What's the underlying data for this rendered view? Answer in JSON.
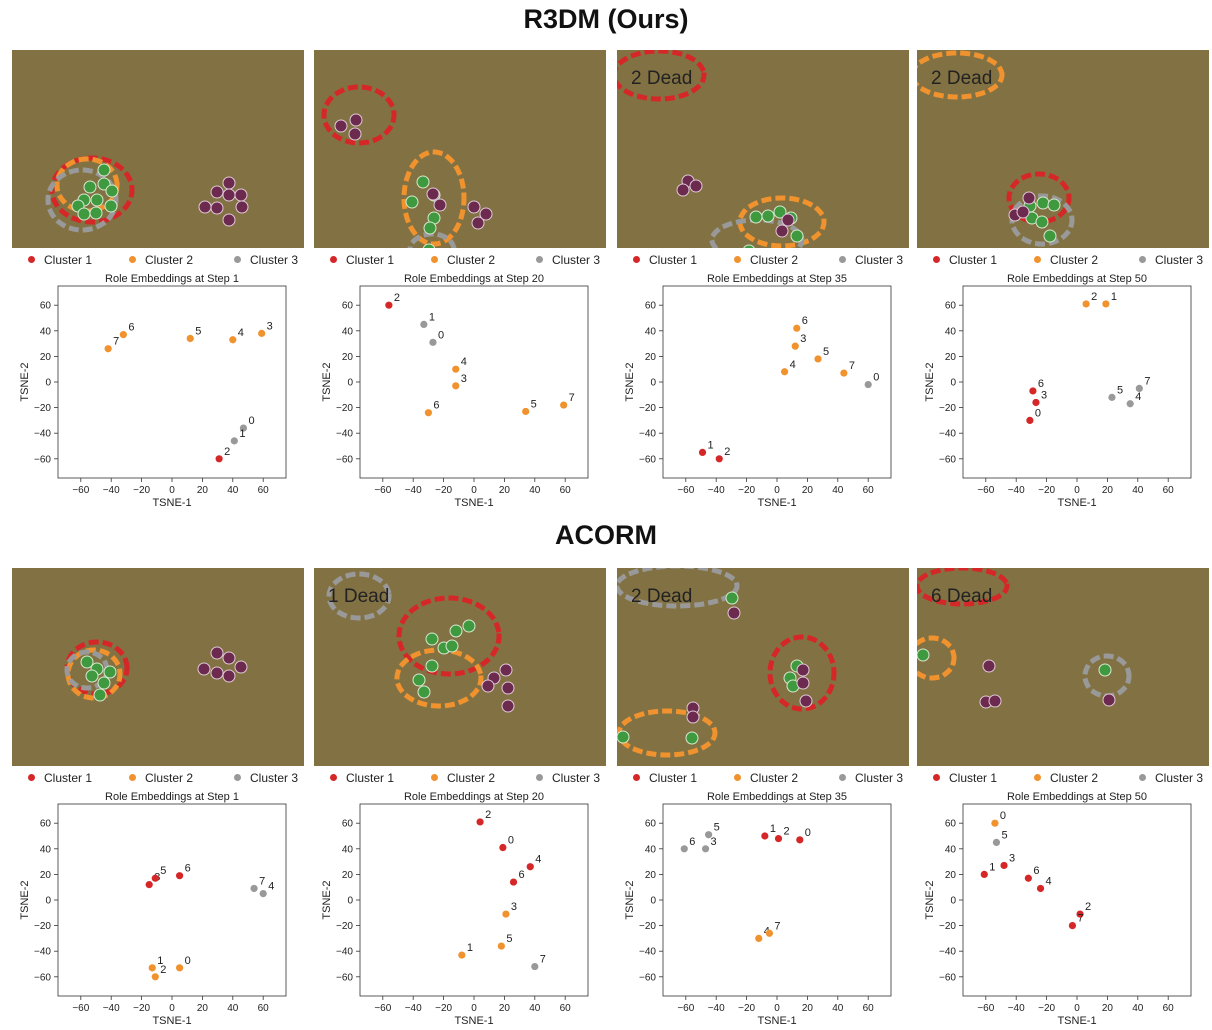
{
  "sections": [
    {
      "title": "R3DM (Ours)",
      "panels": [
        {
          "dead": "",
          "chart_title": "Role Embeddings at Step 1",
          "scene": {
            "agents": [
              [
                78,
                137
              ],
              [
                92,
                134
              ],
              [
                100,
                141
              ],
              [
                72,
                150
              ],
              [
                85,
                150
              ],
              [
                99,
                156
              ],
              [
                66,
                156
              ],
              [
                84,
                163
              ],
              [
                72,
                164
              ],
              [
                92,
                120
              ]
            ],
            "enemies": [
              [
                205,
                158
              ],
              [
                217,
                133
              ],
              [
                229,
                145
              ],
              [
                217,
                145
              ],
              [
                205,
                142
              ],
              [
                230,
                157
              ],
              [
                217,
                170
              ],
              [
                193,
                157
              ]
            ]
          }
        },
        {
          "dead": "",
          "chart_title": "Role Embeddings at Step 20",
          "scene": {
            "agents": [
              [
                109,
                132
              ],
              [
                98,
                152
              ],
              [
                120,
                145
              ],
              [
                120,
                168
              ],
              [
                116,
                178
              ],
              [
                115,
                200
              ]
            ],
            "enemies": [
              [
                42,
                70
              ],
              [
                27,
                76
              ],
              [
                41,
                84
              ],
              [
                160,
                157
              ],
              [
                172,
                164
              ],
              [
                164,
                173
              ],
              [
                126,
                155
              ],
              [
                119,
                144
              ]
            ]
          }
        },
        {
          "dead": "2 Dead",
          "chart_title": "Role Embeddings at Step 35",
          "scene": {
            "agents": [
              [
                139,
                167
              ],
              [
                151,
                166
              ],
              [
                163,
                162
              ],
              [
                174,
                168
              ],
              [
                180,
                186
              ],
              [
                132,
                201
              ]
            ],
            "enemies": [
              [
                71,
                131
              ],
              [
                79,
                136
              ],
              [
                66,
                140
              ],
              [
                171,
                170
              ],
              [
                165,
                181
              ]
            ]
          }
        },
        {
          "dead": "2 Dead",
          "chart_title": "Role Embeddings at Step 50",
          "scene": {
            "agents": [
              [
                113,
                156
              ],
              [
                126,
                153
              ],
              [
                137,
                155
              ],
              [
                115,
                168
              ],
              [
                125,
                172
              ],
              [
                133,
                186
              ]
            ],
            "enemies": [
              [
                98,
                165
              ],
              [
                106,
                162
              ],
              [
                112,
                148
              ]
            ]
          }
        }
      ]
    },
    {
      "title": "ACORM",
      "panels": [
        {
          "dead": "",
          "chart_title": "Role Embeddings at Step 1",
          "scene": {
            "agents": [
              [
                75,
                94
              ],
              [
                85,
                101
              ],
              [
                98,
                104
              ],
              [
                80,
                108
              ],
              [
                92,
                115
              ],
              [
                88,
                127
              ]
            ],
            "enemies": [
              [
                205,
                85
              ],
              [
                217,
                90
              ],
              [
                229,
                99
              ],
              [
                192,
                101
              ],
              [
                205,
                105
              ],
              [
                217,
                108
              ]
            ]
          }
        },
        {
          "dead": "1 Dead",
          "chart_title": "Role Embeddings at Step 20",
          "scene": {
            "agents": [
              [
                118,
                71
              ],
              [
                142,
                63
              ],
              [
                155,
                58
              ],
              [
                130,
                80
              ],
              [
                138,
                78
              ],
              [
                118,
                98
              ],
              [
                105,
                112
              ],
              [
                110,
                124
              ]
            ],
            "enemies": [
              [
                192,
                102
              ],
              [
                180,
                110
              ],
              [
                174,
                118
              ],
              [
                194,
                138
              ],
              [
                194,
                120
              ]
            ]
          }
        },
        {
          "dead": "2 Dead",
          "chart_title": "Role Embeddings at Step 35",
          "scene": {
            "agents": [
              [
                180,
                98
              ],
              [
                173,
                110
              ],
              [
                176,
                118
              ],
              [
                115,
                30
              ],
              [
                6,
                169
              ],
              [
                75,
                170
              ]
            ],
            "enemies": [
              [
                186,
                102
              ],
              [
                186,
                115
              ],
              [
                189,
                133
              ],
              [
                117,
                45
              ],
              [
                76,
                140
              ],
              [
                76,
                149
              ]
            ]
          }
        },
        {
          "dead": "6 Dead",
          "chart_title": "Role Embeddings at Step 50",
          "scene": {
            "agents": [
              [
                188,
                102
              ],
              [
                6,
                87
              ]
            ],
            "enemies": [
              [
                72,
                98
              ],
              [
                69,
                134
              ],
              [
                78,
                133
              ],
              [
                192,
                132
              ]
            ]
          }
        }
      ]
    }
  ],
  "legend": [
    {
      "label": "Cluster 1",
      "color": "#d62728"
    },
    {
      "label": "Cluster 2",
      "color": "#f0922e"
    },
    {
      "label": "Cluster 3",
      "color": "#999999"
    }
  ],
  "chart_data": [
    {
      "type": "scatter",
      "title": "Role Embeddings at Step 1",
      "xlabel": "TSNE-1",
      "ylabel": "TSNE-2",
      "xlim": [
        -75,
        75
      ],
      "ylim": [
        -75,
        75
      ],
      "xticks": [
        -60,
        -40,
        -20,
        0,
        20,
        40,
        60
      ],
      "yticks": [
        -60,
        -40,
        -20,
        0,
        20,
        40,
        60
      ],
      "points": [
        {
          "label": "0",
          "x": 47,
          "y": -36,
          "cluster": 3
        },
        {
          "label": "1",
          "x": 41,
          "y": -46,
          "cluster": 3
        },
        {
          "label": "2",
          "x": 31,
          "y": -60,
          "cluster": 1
        },
        {
          "label": "3",
          "x": 59,
          "y": 38,
          "cluster": 2
        },
        {
          "label": "4",
          "x": 40,
          "y": 33,
          "cluster": 2
        },
        {
          "label": "5",
          "x": 12,
          "y": 34,
          "cluster": 2
        },
        {
          "label": "6",
          "x": -32,
          "y": 37,
          "cluster": 2
        },
        {
          "label": "7",
          "x": -42,
          "y": 26,
          "cluster": 2
        }
      ]
    },
    {
      "type": "scatter",
      "title": "Role Embeddings at Step 20",
      "xlabel": "TSNE-1",
      "ylabel": "TSNE-2",
      "xlim": [
        -75,
        75
      ],
      "ylim": [
        -75,
        75
      ],
      "xticks": [
        -60,
        -40,
        -20,
        0,
        20,
        40,
        60
      ],
      "yticks": [
        -60,
        -40,
        -20,
        0,
        20,
        40,
        60
      ],
      "points": [
        {
          "label": "0",
          "x": -27,
          "y": 31,
          "cluster": 3
        },
        {
          "label": "1",
          "x": -33,
          "y": 45,
          "cluster": 3
        },
        {
          "label": "2",
          "x": -56,
          "y": 60,
          "cluster": 1
        },
        {
          "label": "3",
          "x": -12,
          "y": -3,
          "cluster": 2
        },
        {
          "label": "4",
          "x": -12,
          "y": 10,
          "cluster": 2
        },
        {
          "label": "5",
          "x": 34,
          "y": -23,
          "cluster": 2
        },
        {
          "label": "6",
          "x": -30,
          "y": -24,
          "cluster": 2
        },
        {
          "label": "7",
          "x": 59,
          "y": -18,
          "cluster": 2
        }
      ]
    },
    {
      "type": "scatter",
      "title": "Role Embeddings at Step 35",
      "xlabel": "TSNE-1",
      "ylabel": "TSNE-2",
      "xlim": [
        -75,
        75
      ],
      "ylim": [
        -75,
        75
      ],
      "xticks": [
        -60,
        -40,
        -20,
        0,
        20,
        40,
        60
      ],
      "yticks": [
        -60,
        -40,
        -20,
        0,
        20,
        40,
        60
      ],
      "points": [
        {
          "label": "0",
          "x": 60,
          "y": -2,
          "cluster": 3
        },
        {
          "label": "1",
          "x": -49,
          "y": -55,
          "cluster": 1
        },
        {
          "label": "2",
          "x": -38,
          "y": -60,
          "cluster": 1
        },
        {
          "label": "3",
          "x": 12,
          "y": 28,
          "cluster": 2
        },
        {
          "label": "4",
          "x": 5,
          "y": 8,
          "cluster": 2
        },
        {
          "label": "5",
          "x": 27,
          "y": 18,
          "cluster": 2
        },
        {
          "label": "6",
          "x": 13,
          "y": 42,
          "cluster": 2
        },
        {
          "label": "7",
          "x": 44,
          "y": 7,
          "cluster": 2
        }
      ]
    },
    {
      "type": "scatter",
      "title": "Role Embeddings at Step 50",
      "xlabel": "TSNE-1",
      "ylabel": "TSNE-2",
      "xlim": [
        -75,
        75
      ],
      "ylim": [
        -75,
        75
      ],
      "xticks": [
        -60,
        -40,
        -20,
        0,
        20,
        40,
        60
      ],
      "yticks": [
        -60,
        -40,
        -20,
        0,
        20,
        40,
        60
      ],
      "points": [
        {
          "label": "0",
          "x": -31,
          "y": -30,
          "cluster": 1
        },
        {
          "label": "1",
          "x": 19,
          "y": 61,
          "cluster": 2
        },
        {
          "label": "2",
          "x": 6,
          "y": 61,
          "cluster": 2
        },
        {
          "label": "3",
          "x": -27,
          "y": -16,
          "cluster": 1
        },
        {
          "label": "4",
          "x": 35,
          "y": -17,
          "cluster": 3
        },
        {
          "label": "5",
          "x": 23,
          "y": -12,
          "cluster": 3
        },
        {
          "label": "6",
          "x": -29,
          "y": -7,
          "cluster": 1
        },
        {
          "label": "7",
          "x": 41,
          "y": -5,
          "cluster": 3
        }
      ]
    },
    {
      "type": "scatter",
      "title": "Role Embeddings at Step 1",
      "xlabel": "TSNE-1",
      "ylabel": "TSNE-2",
      "xlim": [
        -75,
        75
      ],
      "ylim": [
        -75,
        75
      ],
      "xticks": [
        -60,
        -40,
        -20,
        0,
        20,
        40,
        60
      ],
      "yticks": [
        -60,
        -40,
        -20,
        0,
        20,
        40,
        60
      ],
      "points": [
        {
          "label": "0",
          "x": 5,
          "y": -53,
          "cluster": 2
        },
        {
          "label": "1",
          "x": -13,
          "y": -53,
          "cluster": 2
        },
        {
          "label": "2",
          "x": -11,
          "y": -60,
          "cluster": 2
        },
        {
          "label": "3",
          "x": -15,
          "y": 12,
          "cluster": 1
        },
        {
          "label": "4",
          "x": 60,
          "y": 5,
          "cluster": 3
        },
        {
          "label": "5",
          "x": -11,
          "y": 17,
          "cluster": 1
        },
        {
          "label": "6",
          "x": 5,
          "y": 19,
          "cluster": 1
        },
        {
          "label": "7",
          "x": 54,
          "y": 9,
          "cluster": 3
        }
      ]
    },
    {
      "type": "scatter",
      "title": "Role Embeddings at Step 20",
      "xlabel": "TSNE-1",
      "ylabel": "TSNE-2",
      "xlim": [
        -75,
        75
      ],
      "ylim": [
        -75,
        75
      ],
      "xticks": [
        -60,
        -40,
        -20,
        0,
        20,
        40,
        60
      ],
      "yticks": [
        -60,
        -40,
        -20,
        0,
        20,
        40,
        60
      ],
      "points": [
        {
          "label": "0",
          "x": 19,
          "y": 41,
          "cluster": 1
        },
        {
          "label": "1",
          "x": -8,
          "y": -43,
          "cluster": 2
        },
        {
          "label": "2",
          "x": 4,
          "y": 61,
          "cluster": 1
        },
        {
          "label": "3",
          "x": 21,
          "y": -11,
          "cluster": 2
        },
        {
          "label": "4",
          "x": 37,
          "y": 26,
          "cluster": 1
        },
        {
          "label": "5",
          "x": 18,
          "y": -36,
          "cluster": 2
        },
        {
          "label": "6",
          "x": 26,
          "y": 14,
          "cluster": 1
        },
        {
          "label": "7",
          "x": 40,
          "y": -52,
          "cluster": 3
        }
      ]
    },
    {
      "type": "scatter",
      "title": "Role Embeddings at Step 35",
      "xlabel": "TSNE-1",
      "ylabel": "TSNE-2",
      "xlim": [
        -75,
        75
      ],
      "ylim": [
        -75,
        75
      ],
      "xticks": [
        -60,
        -40,
        -20,
        0,
        20,
        40,
        60
      ],
      "yticks": [
        -60,
        -40,
        -20,
        0,
        20,
        40,
        60
      ],
      "points": [
        {
          "label": "0",
          "x": 15,
          "y": 47,
          "cluster": 1
        },
        {
          "label": "1",
          "x": -8,
          "y": 50,
          "cluster": 1
        },
        {
          "label": "2",
          "x": 1,
          "y": 48,
          "cluster": 1
        },
        {
          "label": "3",
          "x": -47,
          "y": 40,
          "cluster": 3
        },
        {
          "label": "4",
          "x": -12,
          "y": -30,
          "cluster": 2
        },
        {
          "label": "5",
          "x": -45,
          "y": 51,
          "cluster": 3
        },
        {
          "label": "6",
          "x": -61,
          "y": 40,
          "cluster": 3
        },
        {
          "label": "7",
          "x": -5,
          "y": -26,
          "cluster": 2
        }
      ]
    },
    {
      "type": "scatter",
      "title": "Role Embeddings at Step 50",
      "xlabel": "TSNE-1",
      "ylabel": "TSNE-2",
      "xlim": [
        -75,
        75
      ],
      "ylim": [
        -75,
        75
      ],
      "xticks": [
        -60,
        -40,
        -20,
        0,
        20,
        40,
        60
      ],
      "yticks": [
        -60,
        -40,
        -20,
        0,
        20,
        40,
        60
      ],
      "points": [
        {
          "label": "0",
          "x": -54,
          "y": 60,
          "cluster": 2
        },
        {
          "label": "1",
          "x": -61,
          "y": 20,
          "cluster": 1
        },
        {
          "label": "2",
          "x": 2,
          "y": -11,
          "cluster": 1
        },
        {
          "label": "3",
          "x": -48,
          "y": 27,
          "cluster": 1
        },
        {
          "label": "4",
          "x": -24,
          "y": 9,
          "cluster": 1
        },
        {
          "label": "5",
          "x": -53,
          "y": 45,
          "cluster": 3
        },
        {
          "label": "6",
          "x": -32,
          "y": 17,
          "cluster": 1
        },
        {
          "label": "7",
          "x": -3,
          "y": -20,
          "cluster": 1
        }
      ]
    }
  ]
}
